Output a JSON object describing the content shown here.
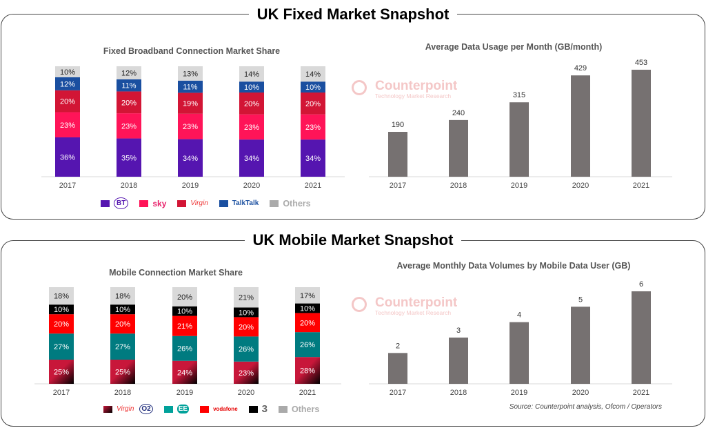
{
  "fixed_panel_title": "UK Fixed Market Snapshot",
  "mobile_panel_title": "UK Mobile Market Snapshot",
  "watermark": {
    "name": "Counterpoint",
    "tagline": "Technology Market Research"
  },
  "source": "Source: Counterpoint analysis, Ofcom / Operators",
  "chart_data": [
    {
      "type": "bar",
      "stacked": true,
      "title": "Fixed Broadband Connection Market Share",
      "categories": [
        "2017",
        "2018",
        "2019",
        "2020",
        "2021"
      ],
      "series": [
        {
          "name": "BT",
          "color": "#5515b0",
          "values": [
            36,
            35,
            34,
            34,
            34
          ]
        },
        {
          "name": "Sky",
          "color": "#ff1458",
          "values": [
            23,
            23,
            23,
            23,
            23
          ]
        },
        {
          "name": "Virgin",
          "color": "#d21535",
          "values": [
            20,
            20,
            19,
            20,
            20
          ]
        },
        {
          "name": "TalkTalk",
          "color": "#1a4fa0",
          "values": [
            12,
            11,
            11,
            10,
            10
          ]
        },
        {
          "name": "Others",
          "color": "#d9d9d9",
          "values": [
            10,
            12,
            13,
            14,
            14
          ]
        }
      ],
      "unit": "%",
      "legend": "bottom"
    },
    {
      "type": "bar",
      "title": "Average Data Usage per Month (GB/month)",
      "categories": [
        "2017",
        "2018",
        "2019",
        "2020",
        "2021"
      ],
      "values": [
        190,
        240,
        315,
        429,
        453
      ],
      "color": "#767171"
    },
    {
      "type": "bar",
      "stacked": true,
      "title": "Mobile Connection Market Share",
      "categories": [
        "2017",
        "2018",
        "2019",
        "2020",
        "2021"
      ],
      "series": [
        {
          "name": "Virgin / O2",
          "color": "#b5173a",
          "values": [
            25,
            25,
            24,
            23,
            28
          ]
        },
        {
          "name": "EE",
          "color": "#007b80",
          "values": [
            27,
            27,
            26,
            26,
            26
          ]
        },
        {
          "name": "Vodafone",
          "color": "#ff0000",
          "values": [
            20,
            20,
            21,
            20,
            20
          ]
        },
        {
          "name": "Three",
          "color": "#000000",
          "values": [
            10,
            10,
            10,
            10,
            10
          ]
        },
        {
          "name": "Others",
          "color": "#d9d9d9",
          "values": [
            18,
            18,
            20,
            21,
            17
          ]
        }
      ],
      "unit": "%",
      "legend": "bottom"
    },
    {
      "type": "bar",
      "title": "Average Monthly Data Volumes by Mobile Data User (GB)",
      "categories": [
        "2017",
        "2018",
        "2019",
        "2020",
        "2021"
      ],
      "values": [
        2,
        3,
        4,
        5,
        6
      ],
      "color": "#767171"
    }
  ],
  "legend_labels": {
    "bt": "BT",
    "sky": "sky",
    "virgin": "Virgin",
    "talktalk": "TalkTalk",
    "others": "Others",
    "o2": "O2",
    "ee": "EE",
    "vodafone": "vodafone",
    "three": "3"
  }
}
